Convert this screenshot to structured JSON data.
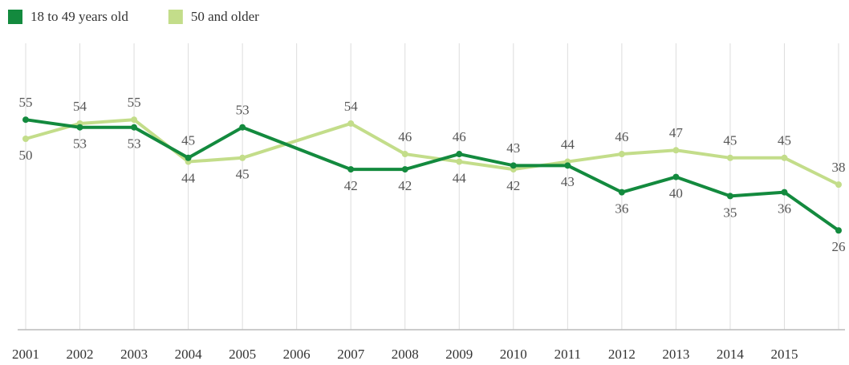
{
  "chart_data": {
    "type": "line",
    "x": [
      2001,
      2002,
      2003,
      2004,
      2005,
      2007,
      2008,
      2009,
      2010,
      2011,
      2012,
      2013,
      2014,
      2015,
      2016
    ],
    "series": [
      {
        "name": "18 to 49 years old",
        "color": "#138a3e",
        "values": [
          55,
          53,
          53,
          45,
          53,
          42,
          42,
          46,
          43,
          43,
          36,
          40,
          35,
          36,
          26
        ]
      },
      {
        "name": "50 and older",
        "color": "#c3dd8a",
        "values": [
          50,
          54,
          55,
          44,
          45,
          54,
          46,
          44,
          42,
          44,
          46,
          47,
          45,
          45,
          38
        ]
      }
    ],
    "xlim": [
      2001,
      2016
    ],
    "xticks": [
      2001,
      2002,
      2003,
      2004,
      2005,
      2006,
      2007,
      2008,
      2009,
      2010,
      2011,
      2012,
      2013,
      2014,
      2015
    ],
    "ylim": [
      0,
      75
    ],
    "grid": true,
    "legend": "top-left"
  }
}
